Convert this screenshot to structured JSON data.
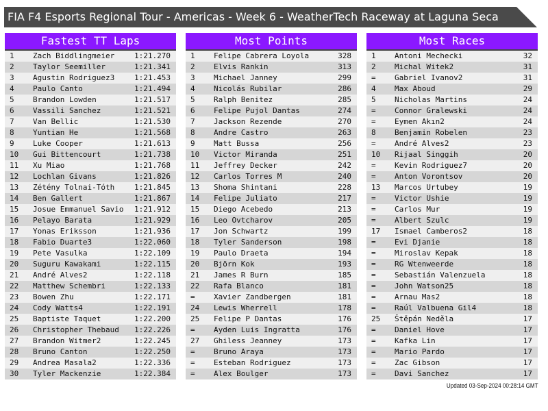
{
  "title": "FIA F4 Esports Regional Tour - Americas - Week 6 - WeatherTech Raceway at Laguna Seca",
  "colors": {
    "header": "#8b18ff",
    "titlebar": "#4a4a4a",
    "row_light": "#efefef",
    "row_dark": "#d6d6d6"
  },
  "tables": [
    {
      "title": "Fastest TT Laps",
      "rows": [
        {
          "rank": "1",
          "name": "Zach Biddlingmeier",
          "value": "1:21.270"
        },
        {
          "rank": "2",
          "name": "Taylor Seemiller",
          "value": "1:21.341"
        },
        {
          "rank": "3",
          "name": "Agustin Rodriguez3",
          "value": "1:21.453"
        },
        {
          "rank": "4",
          "name": "Paulo Canto",
          "value": "1:21.494"
        },
        {
          "rank": "5",
          "name": "Brandon Lowden",
          "value": "1:21.517"
        },
        {
          "rank": "6",
          "name": "Vassili Sanchez",
          "value": "1:21.521"
        },
        {
          "rank": "7",
          "name": "Van Bellic",
          "value": "1:21.530"
        },
        {
          "rank": "8",
          "name": "Yuntian He",
          "value": "1:21.568"
        },
        {
          "rank": "9",
          "name": "Luke Cooper",
          "value": "1:21.613"
        },
        {
          "rank": "10",
          "name": "Gui Bittencourt",
          "value": "1:21.738"
        },
        {
          "rank": "11",
          "name": "Xu Miao",
          "value": "1:21.768"
        },
        {
          "rank": "12",
          "name": "Lochlan Givans",
          "value": "1:21.826"
        },
        {
          "rank": "13",
          "name": "Zétény Tolnai-Tóth",
          "value": "1:21.845"
        },
        {
          "rank": "14",
          "name": "Ben Gallert",
          "value": "1:21.867"
        },
        {
          "rank": "15",
          "name": "Josue Emmanuel Savio",
          "value": "1:21.912"
        },
        {
          "rank": "16",
          "name": "Pelayo Barata",
          "value": "1:21.929"
        },
        {
          "rank": "17",
          "name": "Yonas Eriksson",
          "value": "1:21.936"
        },
        {
          "rank": "18",
          "name": "Fabio Duarte3",
          "value": "1:22.060"
        },
        {
          "rank": "19",
          "name": "Pete Vasulka",
          "value": "1:22.109"
        },
        {
          "rank": "20",
          "name": "Suguru Kawakami",
          "value": "1:22.115"
        },
        {
          "rank": "21",
          "name": "André Alves2",
          "value": "1:22.118"
        },
        {
          "rank": "22",
          "name": "Matthew Schembri",
          "value": "1:22.133"
        },
        {
          "rank": "23",
          "name": "Bowen Zhu",
          "value": "1:22.171"
        },
        {
          "rank": "24",
          "name": "Cody Watts4",
          "value": "1:22.191"
        },
        {
          "rank": "25",
          "name": "Baptiste Taquet",
          "value": "1:22.200"
        },
        {
          "rank": "26",
          "name": "Christopher Thebaud",
          "value": "1:22.226"
        },
        {
          "rank": "27",
          "name": "Brandon Witmer2",
          "value": "1:22.245"
        },
        {
          "rank": "28",
          "name": "Bruno Canton",
          "value": "1:22.250"
        },
        {
          "rank": "29",
          "name": "Andrea Masala2",
          "value": "1:22.336"
        },
        {
          "rank": "30",
          "name": "Tyler Mackenzie",
          "value": "1:22.384"
        }
      ]
    },
    {
      "title": "Most Points",
      "rows": [
        {
          "rank": "1",
          "name": "Felipe Cabrera Loyola",
          "value": "328"
        },
        {
          "rank": "2",
          "name": "Elvis Rankin",
          "value": "313"
        },
        {
          "rank": "3",
          "name": "Michael Janney",
          "value": "299"
        },
        {
          "rank": "4",
          "name": "Nicolás Rubilar",
          "value": "286"
        },
        {
          "rank": "5",
          "name": "Ralph Benitez",
          "value": "285"
        },
        {
          "rank": "6",
          "name": "Felipe Pujol Dantas",
          "value": "274"
        },
        {
          "rank": "7",
          "name": "Jackson Rezende",
          "value": "270"
        },
        {
          "rank": "8",
          "name": "Andre Castro",
          "value": "263"
        },
        {
          "rank": "9",
          "name": "Matt Bussa",
          "value": "256"
        },
        {
          "rank": "10",
          "name": "Victor Miranda",
          "value": "251"
        },
        {
          "rank": "11",
          "name": "Jeffrey Decker",
          "value": "242"
        },
        {
          "rank": "12",
          "name": "Carlos Torres M",
          "value": "240"
        },
        {
          "rank": "13",
          "name": "Shoma Shintani",
          "value": "228"
        },
        {
          "rank": "14",
          "name": "Felipe Juliato",
          "value": "217"
        },
        {
          "rank": "15",
          "name": "Diego Acebedo",
          "value": "213"
        },
        {
          "rank": "16",
          "name": "Leo Ovtcharov",
          "value": "205"
        },
        {
          "rank": "17",
          "name": "Jon Schwartz",
          "value": "199"
        },
        {
          "rank": "18",
          "name": "Tyler Sanderson",
          "value": "198"
        },
        {
          "rank": "19",
          "name": "Paulo Draeta",
          "value": "194"
        },
        {
          "rank": "20",
          "name": "Björn Kok",
          "value": "193"
        },
        {
          "rank": "21",
          "name": "James R Burn",
          "value": "185"
        },
        {
          "rank": "22",
          "name": "Rafa Blanco",
          "value": "181"
        },
        {
          "rank": "=",
          "name": "Xavier Zandbergen",
          "value": "181"
        },
        {
          "rank": "24",
          "name": "Lewis Wherrell",
          "value": "178"
        },
        {
          "rank": "25",
          "name": "Felipe P Dantas",
          "value": "176"
        },
        {
          "rank": "=",
          "name": "Ayden Luis Ingratta",
          "value": "176"
        },
        {
          "rank": "27",
          "name": "Ghiless Jeanney",
          "value": "173"
        },
        {
          "rank": "=",
          "name": "Bruno Araya",
          "value": "173"
        },
        {
          "rank": "=",
          "name": "Esteban Rodriguez",
          "value": "173"
        },
        {
          "rank": "=",
          "name": "Alex Boulger",
          "value": "173"
        }
      ]
    },
    {
      "title": "Most Races",
      "rows": [
        {
          "rank": "1",
          "name": "Antoni Mechecki",
          "value": "32"
        },
        {
          "rank": "2",
          "name": "Michal Witek2",
          "value": "31"
        },
        {
          "rank": "=",
          "name": "Gabriel Ivanov2",
          "value": "31"
        },
        {
          "rank": "4",
          "name": "Max Aboud",
          "value": "29"
        },
        {
          "rank": "5",
          "name": "Nicholas Martins",
          "value": "24"
        },
        {
          "rank": "=",
          "name": "Connor Gralewski",
          "value": "24"
        },
        {
          "rank": "=",
          "name": "Eymen Akın2",
          "value": "24"
        },
        {
          "rank": "8",
          "name": "Benjamin Robelen",
          "value": "23"
        },
        {
          "rank": "=",
          "name": "André Alves2",
          "value": "23"
        },
        {
          "rank": "10",
          "name": "Rijaal Singgih",
          "value": "20"
        },
        {
          "rank": "=",
          "name": "Kevin Rodriguez7",
          "value": "20"
        },
        {
          "rank": "=",
          "name": "Anton Vorontsov",
          "value": "20"
        },
        {
          "rank": "13",
          "name": "Marcos Urtubey",
          "value": "19"
        },
        {
          "rank": "=",
          "name": "Victor Ushie",
          "value": "19"
        },
        {
          "rank": "=",
          "name": "Carlos Mur",
          "value": "19"
        },
        {
          "rank": "=",
          "name": "Albert Szulc",
          "value": "19"
        },
        {
          "rank": "17",
          "name": "Ismael Camberos2",
          "value": "18"
        },
        {
          "rank": "=",
          "name": "Evi Djanie",
          "value": "18"
        },
        {
          "rank": "=",
          "name": "Miroslav Kepak",
          "value": "18"
        },
        {
          "rank": "=",
          "name": "RG Wtenweerde",
          "value": "18"
        },
        {
          "rank": "=",
          "name": "Sebastián Valenzuela",
          "value": "18"
        },
        {
          "rank": "=",
          "name": "John Watson25",
          "value": "18"
        },
        {
          "rank": "=",
          "name": "Arnau Mas2",
          "value": "18"
        },
        {
          "rank": "=",
          "name": "Raúl Valbuena Gil4",
          "value": "18"
        },
        {
          "rank": "25",
          "name": "Štěpán Neděla",
          "value": "17"
        },
        {
          "rank": "=",
          "name": "Daniel Hove",
          "value": "17"
        },
        {
          "rank": "=",
          "name": "Kafka Lin",
          "value": "17"
        },
        {
          "rank": "=",
          "name": "Mario Pardo",
          "value": "17"
        },
        {
          "rank": "=",
          "name": "Zac Gibson",
          "value": "17"
        },
        {
          "rank": "=",
          "name": "Davi Sanchez",
          "value": "17"
        }
      ]
    }
  ],
  "updated": "Updated 03-Sep-2024 00:28:14 GMT"
}
